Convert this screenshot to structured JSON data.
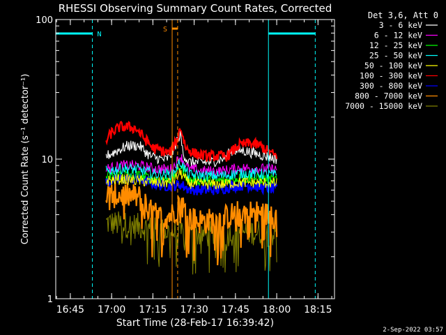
{
  "chart_data": {
    "type": "line",
    "title": "RHESSI Observing Summary Count Rates, Corrected",
    "xlabel": "Start Time (28-Feb-17 16:39:42)",
    "ylabel": "Corrected Count Rate (s⁻¹ detector⁻¹)",
    "y_scale": "log",
    "ylim": [
      1,
      100
    ],
    "y_ticks": [
      {
        "value": 1,
        "label": "1"
      },
      {
        "value": 10,
        "label": "10"
      },
      {
        "value": 100,
        "label": "100"
      }
    ],
    "xlim": [
      "16:39:42",
      "18:21:00"
    ],
    "x_ticks": [
      "16:45",
      "17:00",
      "17:15",
      "17:30",
      "17:45",
      "18:00",
      "18:15"
    ],
    "legend_title": "Det 3,6, Att 0",
    "legend_position": "right",
    "series": [
      {
        "name": "3 - 6 keV",
        "color": "#ffffff",
        "x": [
          "16:58",
          "17:02",
          "17:06",
          "17:10",
          "17:14",
          "17:18",
          "17:20",
          "17:22",
          "17:24",
          "17:25",
          "17:26",
          "17:28",
          "17:32",
          "17:36",
          "17:40",
          "17:44",
          "17:48",
          "17:52",
          "17:56",
          "18:00"
        ],
        "y": [
          10.5,
          11.5,
          12.5,
          12.5,
          10.5,
          10,
          10,
          11,
          14,
          15,
          11,
          9.5,
          9.5,
          9.5,
          10,
          11.5,
          11.5,
          11,
          10.5,
          10
        ]
      },
      {
        "name": "6 - 12 keV",
        "color": "#ff00ff",
        "x": [
          "16:58",
          "17:04",
          "17:10",
          "17:16",
          "17:22",
          "17:25",
          "17:28",
          "17:34",
          "17:40",
          "17:46",
          "17:52",
          "18:00"
        ],
        "y": [
          8.5,
          9,
          9,
          8.5,
          8.5,
          10.5,
          8.5,
          8.2,
          8.2,
          8.6,
          8.6,
          8.4
        ]
      },
      {
        "name": "12 - 25 keV",
        "color": "#00ff00",
        "x": [
          "16:58",
          "17:04",
          "17:10",
          "17:16",
          "17:22",
          "17:25",
          "17:28",
          "17:34",
          "17:40",
          "17:46",
          "17:52",
          "18:00"
        ],
        "y": [
          7.5,
          7.8,
          7.6,
          7.2,
          7.2,
          9,
          7.1,
          7,
          7,
          7.3,
          7.3,
          7.1
        ]
      },
      {
        "name": "25 - 50 keV",
        "color": "#00ffff",
        "x": [
          "16:58",
          "17:04",
          "17:10",
          "17:16",
          "17:22",
          "17:25",
          "17:28",
          "17:34",
          "17:40",
          "17:46",
          "17:52",
          "18:00"
        ],
        "y": [
          8.2,
          8.6,
          8.4,
          7.8,
          7.8,
          9.5,
          7.7,
          7.6,
          7.6,
          7.9,
          7.9,
          7.7
        ]
      },
      {
        "name": "50 - 100 keV",
        "color": "#ffff00",
        "x": [
          "16:58",
          "17:04",
          "17:10",
          "17:16",
          "17:22",
          "17:25",
          "17:28",
          "17:34",
          "17:40",
          "17:46",
          "17:52",
          "18:00"
        ],
        "y": [
          7,
          7.2,
          7,
          6.8,
          6.8,
          8,
          6.7,
          6.6,
          6.6,
          6.8,
          6.8,
          6.7
        ]
      },
      {
        "name": "100 - 300 keV",
        "color": "#ff0000",
        "x": [
          "16:58",
          "17:00",
          "17:03",
          "17:06",
          "17:09",
          "17:12",
          "17:15",
          "17:18",
          "17:21",
          "17:24",
          "17:25",
          "17:27",
          "17:30",
          "17:34",
          "17:38",
          "17:42",
          "17:46",
          "17:50",
          "17:54",
          "17:58",
          "18:00"
        ],
        "y": [
          13.5,
          15.5,
          17,
          17,
          16.5,
          14,
          12,
          11.5,
          11,
          14,
          17,
          12,
          11,
          10.5,
          10.5,
          10.5,
          12.5,
          13,
          12.5,
          11,
          10.5
        ]
      },
      {
        "name": "300 - 800 keV",
        "color": "#0000ff",
        "x": [
          "16:58",
          "17:02",
          "17:06",
          "17:10",
          "17:14",
          "17:18",
          "17:22",
          "17:25",
          "17:28",
          "17:32",
          "17:36",
          "17:40",
          "17:44",
          "17:48",
          "17:52",
          "17:56",
          "18:00"
        ],
        "y": [
          6.8,
          7.2,
          7.3,
          7.2,
          6.8,
          6.5,
          6.4,
          6.6,
          6.1,
          6,
          6,
          6.1,
          6.4,
          6.5,
          6.4,
          6.2,
          6.1
        ]
      },
      {
        "name": "800 - 7000 keV",
        "color": "#ff8c00",
        "x": [
          "16:58",
          "17:02",
          "17:06",
          "17:10",
          "17:14",
          "17:18",
          "17:22",
          "17:25",
          "17:28",
          "17:32",
          "17:36",
          "17:40",
          "17:44",
          "17:48",
          "17:52",
          "17:56",
          "18:00"
        ],
        "y": [
          5.5,
          5.5,
          5.5,
          5.3,
          4.2,
          3.8,
          4,
          5,
          3.8,
          3.6,
          3.6,
          3.7,
          4,
          4.2,
          4.1,
          4,
          3.9
        ]
      },
      {
        "name": "7000 - 15000 keV",
        "color": "#808000",
        "x": [
          "16:58",
          "17:04",
          "17:10",
          "17:16",
          "17:22",
          "17:28",
          "17:34",
          "17:40",
          "17:46",
          "17:52",
          "18:00"
        ],
        "y": [
          3.5,
          3.4,
          3.3,
          3.1,
          3,
          2.9,
          2.9,
          2.9,
          3,
          3,
          2.9
        ]
      }
    ],
    "annotations": [
      {
        "label": "N",
        "type": "night",
        "color": "#00ffff",
        "segments": [
          [
            "16:39:42",
            "16:53"
          ],
          [
            "17:57",
            "18:14"
          ]
        ],
        "boundaries": [
          "16:39:42",
          "16:53",
          "17:57",
          "18:14"
        ]
      },
      {
        "label": "S",
        "type": "saa",
        "color": "#ff8c00",
        "segments": [
          [
            "17:22",
            "17:24"
          ]
        ],
        "boundaries": [
          "17:22",
          "17:24"
        ]
      }
    ],
    "grid": false
  },
  "footer": {
    "date": "2-Sep-2022 03:57"
  }
}
